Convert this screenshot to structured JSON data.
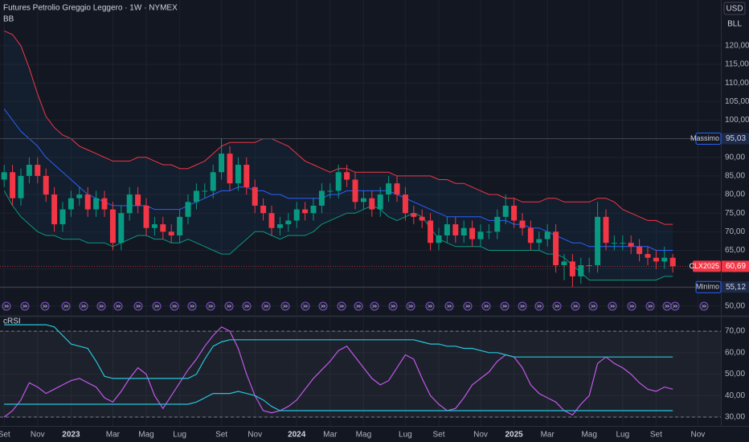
{
  "chart_data": [
    {
      "type": "candlestick",
      "title": "Futures Petrolio Greggio Leggero · 1W · NYMEX",
      "indicator": "BB",
      "currency": "USD",
      "unit": "BLL",
      "up_color": "#089981",
      "down_color": "#f23645",
      "categories": [
        "Set",
        null,
        null,
        null,
        "Nov",
        null,
        null,
        null,
        "2023",
        null,
        null,
        null,
        null,
        "Mar",
        null,
        null,
        null,
        "Mag",
        null,
        null,
        null,
        "Lug",
        null,
        null,
        null,
        null,
        "Set",
        null,
        null,
        null,
        "Nov",
        null,
        null,
        null,
        null,
        "2024",
        null,
        null,
        null,
        "Mar",
        null,
        null,
        null,
        "Mag",
        null,
        null,
        null,
        null,
        "Lug",
        null,
        null,
        null,
        "Set",
        null,
        null,
        null,
        null,
        "Nov",
        null,
        null,
        null,
        "2025",
        null,
        null,
        null,
        "Mar",
        null,
        null,
        null,
        null,
        "Mag",
        null,
        null,
        null,
        "Lug",
        null,
        null,
        null,
        "Set",
        null,
        null,
        null,
        null,
        "Nov",
        null,
        null
      ],
      "open": [
        84,
        86,
        79,
        85,
        88,
        85,
        80,
        72,
        76,
        79,
        80,
        76,
        79,
        76,
        67,
        75,
        80,
        77,
        71,
        72,
        70,
        69,
        74,
        78,
        81,
        81,
        86,
        91,
        83,
        88,
        82,
        77,
        75,
        71,
        72,
        73,
        76,
        75,
        77,
        81,
        81,
        86,
        84,
        78,
        79,
        76,
        80,
        83,
        80,
        75,
        74,
        73,
        67,
        69,
        72,
        69,
        71,
        68,
        70,
        70,
        74,
        77,
        73,
        71,
        67,
        68,
        70,
        61,
        62,
        58,
        61,
        61,
        74,
        67,
        67,
        67,
        66,
        64,
        63,
        62,
        63,
        null,
        null,
        null,
        null,
        null
      ],
      "high": [
        88,
        88,
        87,
        90,
        90,
        87,
        82,
        78,
        81,
        82,
        82,
        81,
        81,
        78,
        77,
        82,
        82,
        79,
        74,
        74,
        72,
        76,
        80,
        83,
        83,
        88,
        95.03,
        93,
        90,
        90,
        84,
        79,
        77,
        74,
        75,
        78,
        78,
        79,
        83,
        83,
        88,
        88,
        86,
        81,
        81,
        82,
        85,
        85,
        82,
        77,
        76,
        75,
        71,
        74,
        74,
        73,
        73,
        72,
        72,
        76,
        80,
        79,
        75,
        73,
        70,
        72,
        72,
        64,
        64,
        63,
        63,
        78,
        76,
        69,
        69,
        69,
        68,
        66,
        65,
        66,
        64,
        null,
        null,
        null,
        null,
        null
      ],
      "low": [
        82,
        77,
        77,
        83,
        83,
        78,
        70,
        70,
        74,
        77,
        74,
        74,
        74,
        65,
        65,
        73,
        75,
        69,
        69,
        68,
        67,
        67,
        72,
        76,
        79,
        79,
        84,
        81,
        81,
        80,
        75,
        73,
        69,
        69,
        70,
        71,
        73,
        73,
        75,
        79,
        79,
        82,
        76,
        76,
        74,
        74,
        78,
        78,
        73,
        72,
        71,
        65,
        65,
        67,
        67,
        67,
        66,
        66,
        68,
        68,
        72,
        71,
        69,
        65,
        65,
        66,
        59,
        57,
        55.12,
        56,
        59,
        59,
        65,
        65,
        65,
        64,
        62,
        61,
        60,
        60,
        59,
        null,
        null,
        null,
        null,
        null
      ],
      "close": [
        86,
        79,
        85,
        88,
        85,
        80,
        72,
        76,
        79,
        80,
        76,
        79,
        76,
        67,
        75,
        80,
        77,
        71,
        72,
        70,
        69,
        74,
        78,
        81,
        81,
        86,
        91,
        83,
        88,
        82,
        77,
        75,
        71,
        72,
        73,
        76,
        75,
        77,
        81,
        81,
        86,
        84,
        78,
        79,
        76,
        80,
        83,
        80,
        75,
        74,
        73,
        67,
        69,
        72,
        69,
        71,
        68,
        70,
        70,
        74,
        77,
        73,
        71,
        67,
        68,
        70,
        61,
        62,
        58,
        61,
        61,
        74,
        67,
        67,
        67,
        66,
        64,
        63,
        62,
        63,
        60.69,
        null,
        null,
        null,
        null,
        null
      ],
      "bollinger": {
        "upper": {
          "color": "#f23645",
          "values": [
            124,
            123,
            120,
            114,
            107,
            101,
            98,
            96,
            95,
            93,
            92,
            91,
            90,
            89,
            89,
            89,
            90,
            90,
            89,
            88,
            88,
            87,
            87,
            88,
            89,
            91,
            93,
            94,
            94,
            94,
            94,
            95,
            95,
            94,
            93,
            91,
            89,
            88,
            87,
            86,
            87,
            87,
            86,
            86,
            86,
            86,
            86,
            85,
            85,
            85,
            85,
            85,
            84,
            84,
            83,
            83,
            82,
            81,
            80,
            80,
            79,
            79,
            78,
            78,
            78,
            79,
            79,
            78,
            78,
            78,
            78,
            79,
            79,
            78,
            76,
            75,
            74,
            73,
            73,
            72,
            72,
            null,
            null,
            null,
            null,
            null
          ]
        },
        "basis": {
          "color": "#2962ff",
          "values": [
            103,
            100,
            97,
            95,
            93,
            90,
            88,
            86,
            84,
            82,
            80,
            79,
            78,
            77,
            77,
            77,
            77,
            77,
            76,
            76,
            76,
            76,
            77,
            78,
            79,
            80,
            81,
            81,
            82,
            82,
            81,
            81,
            80,
            80,
            79,
            79,
            79,
            79,
            79,
            80,
            80,
            81,
            81,
            81,
            81,
            81,
            81,
            80,
            79,
            78,
            77,
            76,
            75,
            74,
            74,
            74,
            74,
            74,
            73,
            73,
            73,
            72,
            72,
            71,
            71,
            70,
            69,
            68,
            67,
            67,
            66,
            66,
            66,
            66,
            66,
            66,
            66,
            66,
            65,
            65,
            65,
            null,
            null,
            null,
            null,
            null
          ]
        },
        "lower": {
          "color": "#089981",
          "values": [
            81,
            77,
            74,
            72,
            70,
            69,
            69,
            68,
            68,
            68,
            67,
            67,
            67,
            66,
            67,
            68,
            69,
            69,
            68,
            68,
            67,
            67,
            68,
            67,
            66,
            65,
            64,
            64,
            66,
            68,
            70,
            70,
            69,
            68,
            69,
            69,
            69,
            70,
            72,
            73,
            74,
            75,
            75,
            76,
            77,
            76,
            74,
            73,
            74,
            75,
            74,
            71,
            68,
            67,
            66,
            66,
            66,
            66,
            65,
            65,
            65,
            65,
            65,
            65,
            65,
            64,
            64,
            63,
            61,
            59,
            57,
            57,
            57,
            57,
            57,
            57,
            57,
            57,
            57,
            58,
            58,
            null,
            null,
            null,
            null,
            null
          ]
        }
      },
      "ylim": [
        47.6,
        132.3
      ],
      "yticks": [
        {
          "value": 50,
          "label": "50,00"
        },
        {
          "value": 55,
          "label": "55,00"
        },
        {
          "value": 60,
          "label": "60,00"
        },
        {
          "value": 65,
          "label": "65,00"
        },
        {
          "value": 70,
          "label": "70,00"
        },
        {
          "value": 75,
          "label": "75,00"
        },
        {
          "value": 80,
          "label": "80,00"
        },
        {
          "value": 85,
          "label": "85,00"
        },
        {
          "value": 90,
          "label": "90,00"
        },
        {
          "value": 95,
          "label": "95,00"
        },
        {
          "value": 100,
          "label": "100,00"
        },
        {
          "value": 105,
          "label": "105,00"
        },
        {
          "value": 110,
          "label": "110,00"
        },
        {
          "value": 115,
          "label": "115,00"
        },
        {
          "value": 120,
          "label": "120,00"
        }
      ],
      "annotations": [
        {
          "label": "Massimo",
          "value": 95.03,
          "value_label": "95,03"
        },
        {
          "label": "Minimo",
          "value": 55.12,
          "value_label": "55,12"
        }
      ],
      "last_price": {
        "label": "CLX2025",
        "value": 60.69,
        "value_label": "60,69"
      },
      "grid": true
    },
    {
      "type": "line",
      "title": "cRSI",
      "series": [
        {
          "color": "#c158e8",
          "values": [
            30,
            33,
            38,
            46,
            44,
            41,
            43,
            45,
            47,
            48,
            46,
            44,
            39,
            37,
            42,
            48,
            53,
            50,
            40,
            34,
            40,
            46,
            52,
            57,
            63,
            68,
            72,
            70,
            62,
            50,
            40,
            33,
            32,
            33,
            35,
            38,
            43,
            48,
            52,
            56,
            61,
            63,
            58,
            53,
            48,
            45,
            47,
            53,
            59,
            57,
            48,
            40,
            36,
            33,
            34,
            39,
            45,
            48,
            51,
            56,
            59,
            58,
            53,
            45,
            41,
            39,
            37,
            33,
            31,
            36,
            40,
            55,
            58,
            55,
            53,
            50,
            46,
            43,
            42,
            44,
            43,
            null,
            null,
            null,
            null,
            null
          ]
        },
        {
          "color": "#26c6da",
          "values": [
            73,
            73,
            73,
            73,
            73,
            73,
            72,
            68,
            64,
            63,
            62,
            56,
            49,
            48,
            48,
            48,
            48,
            48,
            48,
            48,
            48,
            48,
            48,
            50,
            57,
            63,
            65,
            66,
            66,
            66,
            66,
            66,
            66,
            66,
            66,
            66,
            66,
            66,
            66,
            66,
            66,
            66,
            66,
            66,
            66,
            66,
            66,
            66,
            66,
            66,
            65,
            64,
            64,
            63,
            63,
            62,
            62,
            61,
            60,
            60,
            59,
            58,
            58,
            58,
            58,
            58,
            58,
            58,
            58,
            58,
            58,
            58,
            58,
            58,
            58,
            58,
            58,
            58,
            58,
            58,
            58,
            null,
            null,
            null,
            null,
            null
          ]
        },
        {
          "color": "#26c6da",
          "values": [
            36,
            36,
            36,
            36,
            36,
            36,
            36,
            36,
            36,
            36,
            36,
            36,
            36,
            36,
            36,
            36,
            36,
            36,
            36,
            36,
            36,
            36,
            36,
            37,
            39,
            41,
            41,
            41,
            42,
            41,
            40,
            38,
            35,
            33,
            33,
            33,
            33,
            33,
            33,
            33,
            33,
            33,
            33,
            33,
            33,
            33,
            33,
            33,
            33,
            33,
            33,
            33,
            33,
            33,
            33,
            33,
            33,
            33,
            33,
            33,
            33,
            33,
            33,
            33,
            33,
            33,
            33,
            33,
            33,
            33,
            33,
            33,
            33,
            33,
            33,
            33,
            33,
            33,
            33,
            33,
            33,
            null,
            null,
            null,
            null,
            null
          ]
        }
      ],
      "levels": [
        30,
        70
      ],
      "ylim": [
        25.9,
        76.4
      ],
      "yticks": [
        {
          "value": 30,
          "label": "30,00"
        },
        {
          "value": 40,
          "label": "40,00"
        },
        {
          "value": 50,
          "label": "50,00"
        },
        {
          "value": 60,
          "label": "60,00"
        },
        {
          "value": 70,
          "label": "70,00"
        }
      ]
    }
  ]
}
